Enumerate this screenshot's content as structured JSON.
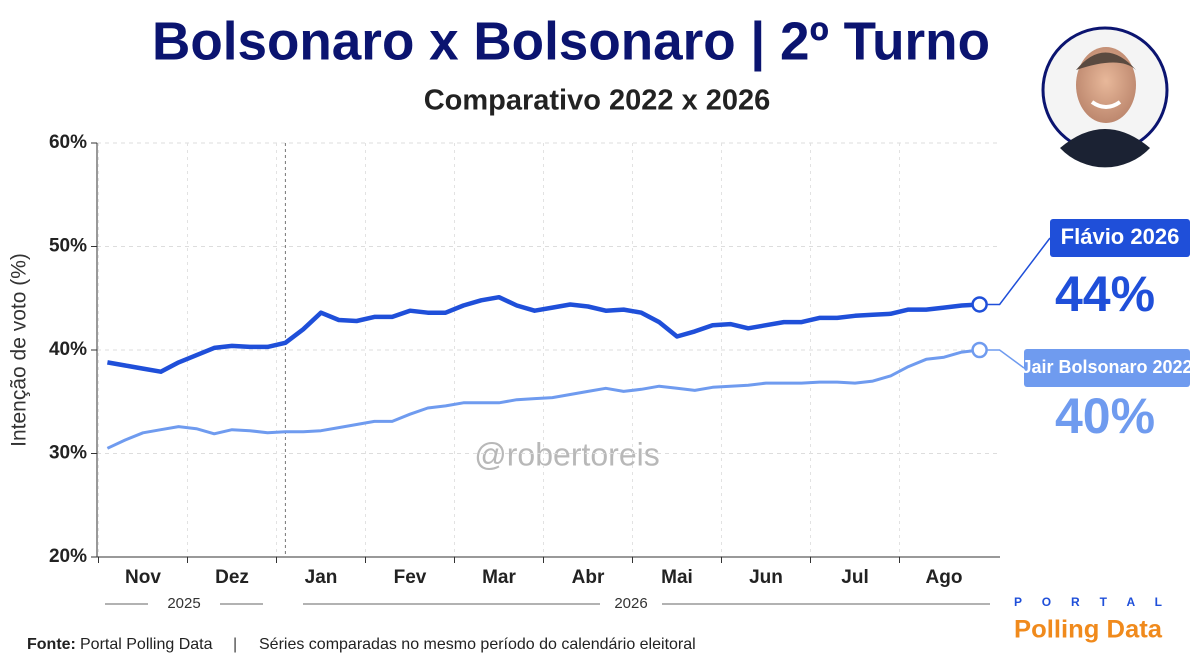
{
  "chart_data": {
    "type": "line",
    "title": "Bolsonaro x Bolsonaro | 2º Turno",
    "subtitle": "Comparativo 2022 x 2026",
    "y_label": "Intenção de voto (%)",
    "watermark": "@robertoreis",
    "categories": [
      null,
      null,
      "Nov",
      null,
      null,
      null,
      null,
      "Dez",
      null,
      null,
      null,
      null,
      "Jan",
      null,
      null,
      null,
      null,
      "Fev",
      null,
      null,
      null,
      null,
      "Mar",
      null,
      null,
      null,
      null,
      "Abr",
      null,
      null,
      null,
      null,
      "Mai",
      null,
      null,
      null,
      null,
      "Jun",
      null,
      null,
      null,
      null,
      "Jul",
      null,
      null,
      null,
      null,
      "Ago",
      null,
      null
    ],
    "years": [
      "2025",
      "2026"
    ],
    "ylim": [
      20,
      60
    ],
    "yticks": [
      {
        "value": 20,
        "label": "20%"
      },
      {
        "value": 30,
        "label": "30%"
      },
      {
        "value": 40,
        "label": "40%"
      },
      {
        "value": 50,
        "label": "50%"
      },
      {
        "value": 60,
        "label": "60%"
      }
    ],
    "grid": true,
    "series": [
      {
        "name": "Flávio 2026",
        "color": "#1f4fd9",
        "end_label": "44%",
        "values": [
          38.8,
          38.5,
          38.2,
          37.9,
          38.8,
          39.5,
          40.2,
          40.4,
          40.3,
          40.3,
          40.7,
          42.0,
          43.6,
          42.9,
          42.8,
          43.2,
          43.2,
          43.8,
          43.6,
          43.6,
          44.3,
          44.8,
          45.1,
          44.3,
          43.8,
          44.1,
          44.4,
          44.2,
          43.8,
          43.9,
          43.6,
          42.7,
          41.3,
          41.8,
          42.4,
          42.5,
          42.1,
          42.4,
          42.7,
          42.7,
          43.1,
          43.1,
          43.3,
          43.4,
          43.5,
          43.9,
          43.9,
          44.1,
          44.3,
          44.4
        ]
      },
      {
        "name": "Jair Bolsonaro 2022",
        "color": "#6f9bef",
        "end_label": "40%",
        "values": [
          30.5,
          31.3,
          32.0,
          32.3,
          32.6,
          32.4,
          31.9,
          32.3,
          32.2,
          32.0,
          32.1,
          32.1,
          32.2,
          32.5,
          32.8,
          33.1,
          33.1,
          33.8,
          34.4,
          34.6,
          34.9,
          34.9,
          34.9,
          35.2,
          35.3,
          35.4,
          35.7,
          36.0,
          36.3,
          36.0,
          36.2,
          36.5,
          36.3,
          36.1,
          36.4,
          36.5,
          36.6,
          36.8,
          36.8,
          36.8,
          36.9,
          36.9,
          36.8,
          37.0,
          37.5,
          38.4,
          39.1,
          39.3,
          39.8,
          40.0
        ]
      }
    ]
  },
  "footer": {
    "source_label": "Fonte:",
    "source": "Portal Polling Data",
    "separator": "|",
    "note": "Séries comparadas no mesmo período do calendário eleitoral"
  },
  "logo": {
    "top": "P O R T A L",
    "name": "Polling Data"
  }
}
